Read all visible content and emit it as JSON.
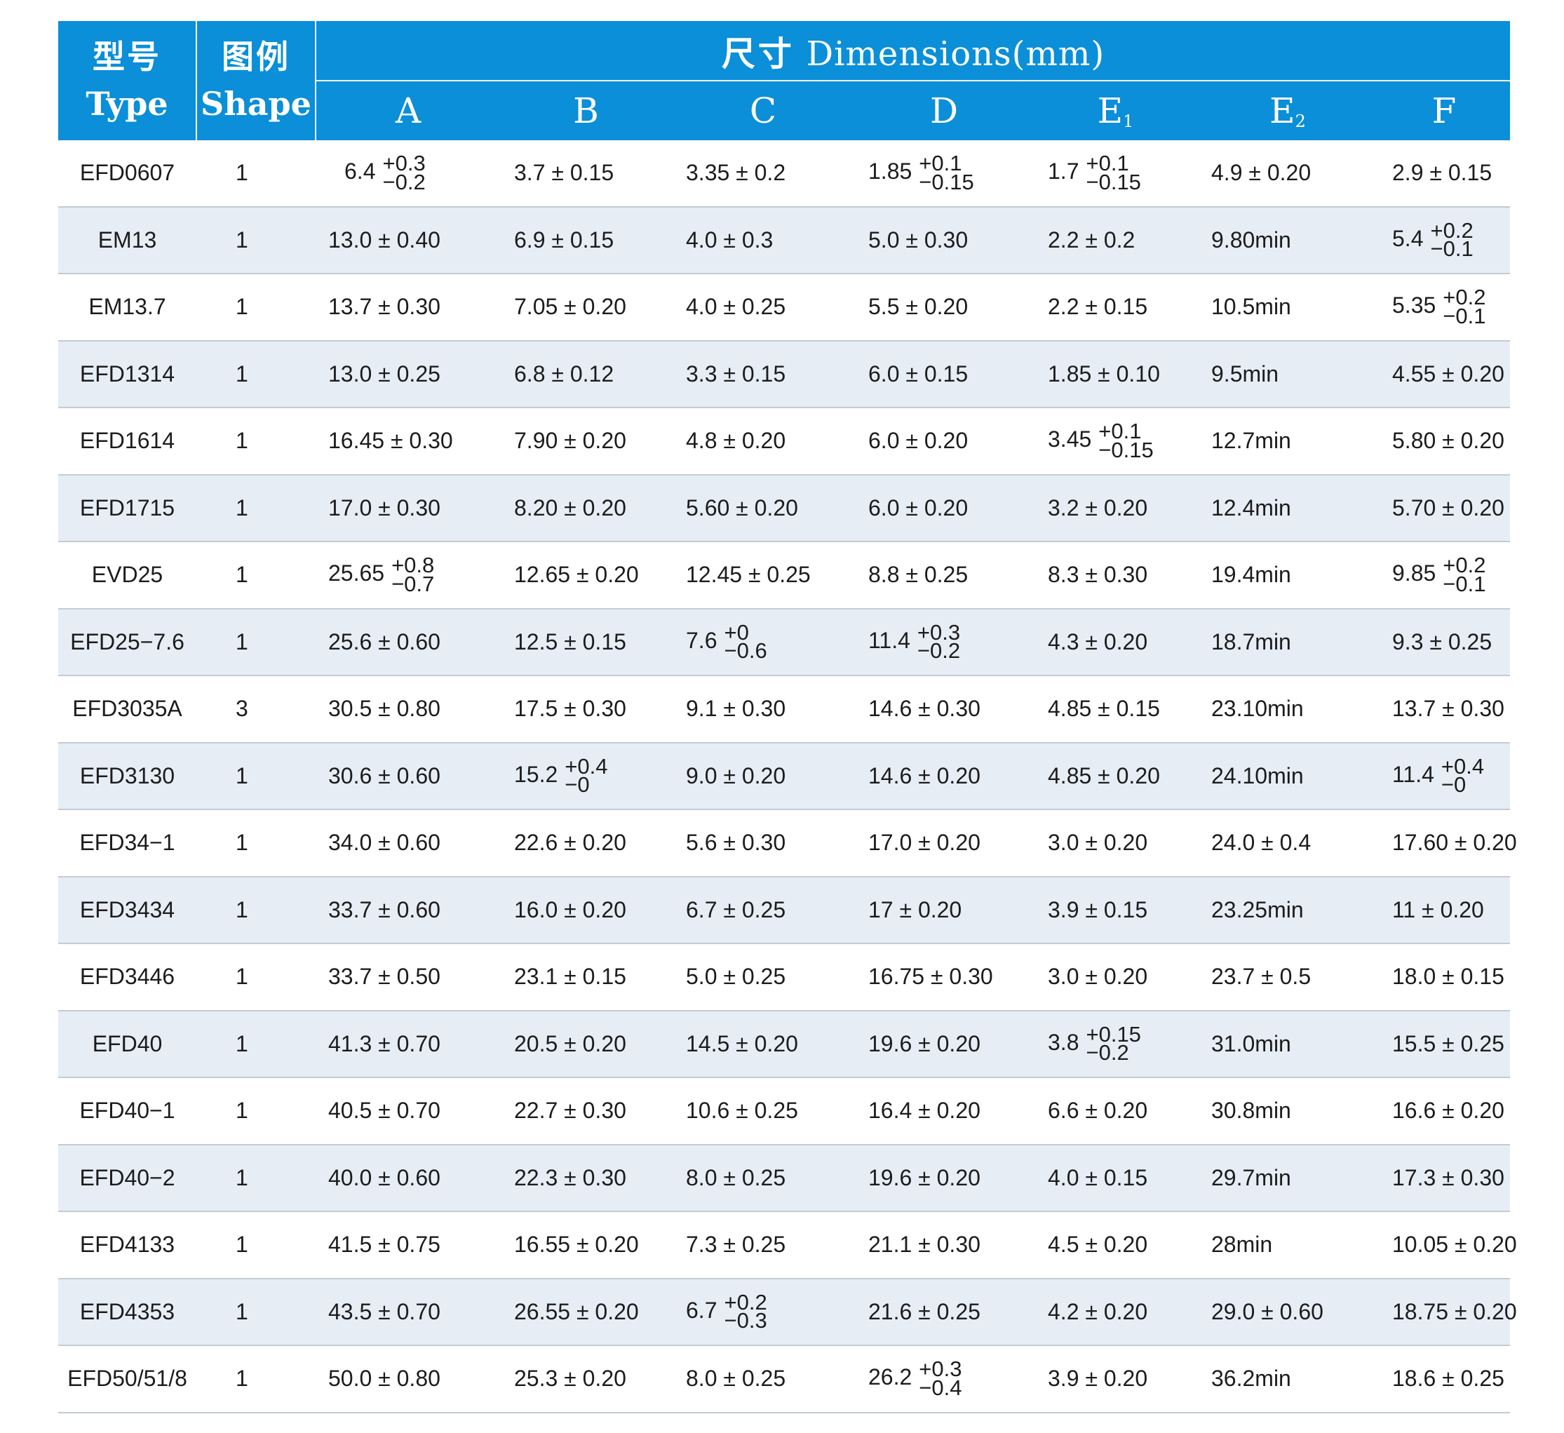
{
  "header": {
    "type_cn": "型号",
    "type_en": "Type",
    "shape_cn": "图例",
    "shape_en": "Shape",
    "dims_cn": "尺寸",
    "dims_en": "Dimensions(mm)",
    "columns": [
      {
        "label": "A",
        "sub": ""
      },
      {
        "label": "B",
        "sub": ""
      },
      {
        "label": "C",
        "sub": ""
      },
      {
        "label": "D",
        "sub": ""
      },
      {
        "label": "E",
        "sub": "1"
      },
      {
        "label": "E",
        "sub": "2"
      },
      {
        "label": "F",
        "sub": ""
      }
    ]
  },
  "rows": [
    {
      "type": "EFD0607",
      "shape": "1",
      "values": [
        {
          "base": "6.4",
          "up": "+0.3",
          "dn": "−0.2"
        },
        {
          "text": "3.7 ± 0.15"
        },
        {
          "text": "3.35 ± 0.2"
        },
        {
          "base": "1.85",
          "up": "+0.1",
          "dn": "−0.15"
        },
        {
          "base": "1.7",
          "up": "+0.1",
          "dn": "−0.15"
        },
        {
          "text": "4.9 ± 0.20"
        },
        {
          "text": "2.9 ± 0.15"
        }
      ]
    },
    {
      "type": "EM13",
      "shape": "1",
      "values": [
        {
          "text": "13.0 ± 0.40"
        },
        {
          "text": "6.9 ± 0.15"
        },
        {
          "text": "4.0 ± 0.3"
        },
        {
          "text": "5.0 ± 0.30"
        },
        {
          "text": "2.2 ± 0.2"
        },
        {
          "text": "9.80min"
        },
        {
          "base": "5.4",
          "up": "+0.2",
          "dn": "−0.1"
        }
      ]
    },
    {
      "type": "EM13.7",
      "shape": "1",
      "values": [
        {
          "text": "13.7 ± 0.30"
        },
        {
          "text": "7.05 ± 0.20"
        },
        {
          "text": "4.0 ± 0.25"
        },
        {
          "text": "5.5 ± 0.20"
        },
        {
          "text": "2.2 ± 0.15"
        },
        {
          "text": "10.5min"
        },
        {
          "base": "5.35",
          "up": "+0.2",
          "dn": "−0.1"
        }
      ]
    },
    {
      "type": "EFD1314",
      "shape": "1",
      "values": [
        {
          "text": "13.0 ± 0.25"
        },
        {
          "text": "6.8 ± 0.12"
        },
        {
          "text": "3.3 ± 0.15"
        },
        {
          "text": "6.0 ± 0.15"
        },
        {
          "text": "1.85 ± 0.10"
        },
        {
          "text": "9.5min"
        },
        {
          "text": "4.55 ± 0.20"
        }
      ]
    },
    {
      "type": "EFD1614",
      "shape": "1",
      "values": [
        {
          "text": "16.45 ± 0.30"
        },
        {
          "text": "7.90 ± 0.20"
        },
        {
          "text": "4.8 ± 0.20"
        },
        {
          "text": "6.0 ± 0.20"
        },
        {
          "base": "3.45",
          "up": "+0.1",
          "dn": "−0.15"
        },
        {
          "text": "12.7min"
        },
        {
          "text": "5.80 ± 0.20"
        }
      ]
    },
    {
      "type": "EFD1715",
      "shape": "1",
      "values": [
        {
          "text": "17.0 ± 0.30"
        },
        {
          "text": "8.20 ± 0.20"
        },
        {
          "text": "5.60 ± 0.20"
        },
        {
          "text": "6.0 ± 0.20"
        },
        {
          "text": "3.2 ± 0.20"
        },
        {
          "text": "12.4min"
        },
        {
          "text": "5.70 ± 0.20"
        }
      ]
    },
    {
      "type": "EVD25",
      "shape": "1",
      "values": [
        {
          "base": "25.65",
          "up": "+0.8",
          "dn": "−0.7"
        },
        {
          "text": "12.65 ± 0.20"
        },
        {
          "text": "12.45 ± 0.25"
        },
        {
          "text": "8.8 ± 0.25"
        },
        {
          "text": "8.3 ± 0.30"
        },
        {
          "text": "19.4min"
        },
        {
          "base": "9.85",
          "up": "+0.2",
          "dn": "−0.1"
        }
      ]
    },
    {
      "type": "EFD25−7.6",
      "shape": "1",
      "values": [
        {
          "text": "25.6 ± 0.60"
        },
        {
          "text": "12.5 ± 0.15"
        },
        {
          "base": "7.6",
          "up": "+0",
          "dn": "−0.6"
        },
        {
          "base": "11.4",
          "up": "+0.3",
          "dn": "−0.2"
        },
        {
          "text": "4.3 ± 0.20"
        },
        {
          "text": "18.7min"
        },
        {
          "text": "9.3 ± 0.25"
        }
      ]
    },
    {
      "type": "EFD3035A",
      "shape": "3",
      "values": [
        {
          "text": "30.5 ± 0.80"
        },
        {
          "text": "17.5 ± 0.30"
        },
        {
          "text": "9.1 ± 0.30"
        },
        {
          "text": "14.6 ± 0.30"
        },
        {
          "text": "4.85 ± 0.15"
        },
        {
          "text": "23.10min"
        },
        {
          "text": "13.7 ± 0.30"
        }
      ]
    },
    {
      "type": "EFD3130",
      "shape": "1",
      "values": [
        {
          "text": "30.6 ± 0.60"
        },
        {
          "base": "15.2",
          "up": "+0.4",
          "dn": "−0"
        },
        {
          "text": "9.0 ± 0.20"
        },
        {
          "text": "14.6 ± 0.20"
        },
        {
          "text": "4.85 ± 0.20"
        },
        {
          "text": "24.10min"
        },
        {
          "base": "11.4",
          "up": "+0.4",
          "dn": "−0"
        }
      ]
    },
    {
      "type": "EFD34−1",
      "shape": "1",
      "values": [
        {
          "text": "34.0 ± 0.60"
        },
        {
          "text": "22.6 ± 0.20"
        },
        {
          "text": "5.6 ± 0.30"
        },
        {
          "text": "17.0 ± 0.20"
        },
        {
          "text": "3.0 ± 0.20"
        },
        {
          "text": "24.0 ± 0.4"
        },
        {
          "text": "17.60 ± 0.20"
        }
      ]
    },
    {
      "type": "EFD3434",
      "shape": "1",
      "values": [
        {
          "text": "33.7 ± 0.60"
        },
        {
          "text": "16.0 ± 0.20"
        },
        {
          "text": "6.7 ± 0.25"
        },
        {
          "text": "17 ± 0.20"
        },
        {
          "text": "3.9 ± 0.15"
        },
        {
          "text": "23.25min"
        },
        {
          "text": "11 ± 0.20"
        }
      ]
    },
    {
      "type": "EFD3446",
      "shape": "1",
      "values": [
        {
          "text": "33.7 ± 0.50"
        },
        {
          "text": "23.1 ± 0.15"
        },
        {
          "text": "5.0 ± 0.25"
        },
        {
          "text": "16.75 ± 0.30"
        },
        {
          "text": "3.0 ± 0.20"
        },
        {
          "text": "23.7 ± 0.5"
        },
        {
          "text": "18.0 ± 0.15"
        }
      ]
    },
    {
      "type": "EFD40",
      "shape": "1",
      "values": [
        {
          "text": "41.3 ± 0.70"
        },
        {
          "text": "20.5 ± 0.20"
        },
        {
          "text": "14.5 ± 0.20"
        },
        {
          "text": "19.6 ± 0.20"
        },
        {
          "base": "3.8",
          "up": "+0.15",
          "dn": "−0.2"
        },
        {
          "text": "31.0min"
        },
        {
          "text": "15.5 ± 0.25"
        }
      ]
    },
    {
      "type": "EFD40−1",
      "shape": "1",
      "values": [
        {
          "text": "40.5 ± 0.70"
        },
        {
          "text": "22.7 ± 0.30"
        },
        {
          "text": "10.6 ± 0.25"
        },
        {
          "text": "16.4 ± 0.20"
        },
        {
          "text": "6.6 ± 0.20"
        },
        {
          "text": "30.8min"
        },
        {
          "text": "16.6 ± 0.20"
        }
      ]
    },
    {
      "type": "EFD40−2",
      "shape": "1",
      "values": [
        {
          "text": "40.0 ± 0.60"
        },
        {
          "text": "22.3 ± 0.30"
        },
        {
          "text": "8.0 ± 0.25"
        },
        {
          "text": "19.6 ± 0.20"
        },
        {
          "text": "4.0 ± 0.15"
        },
        {
          "text": "29.7min"
        },
        {
          "text": "17.3 ± 0.30"
        }
      ]
    },
    {
      "type": "EFD4133",
      "shape": "1",
      "values": [
        {
          "text": "41.5 ± 0.75"
        },
        {
          "text": "16.55 ± 0.20"
        },
        {
          "text": "7.3 ± 0.25"
        },
        {
          "text": "21.1 ± 0.30"
        },
        {
          "text": "4.5 ± 0.20"
        },
        {
          "text": "28min"
        },
        {
          "text": "10.05 ± 0.20"
        }
      ]
    },
    {
      "type": "EFD4353",
      "shape": "1",
      "values": [
        {
          "text": "43.5 ± 0.70"
        },
        {
          "text": "26.55 ± 0.20"
        },
        {
          "base": "6.7",
          "up": "+0.2",
          "dn": "−0.3"
        },
        {
          "text": "21.6 ± 0.25"
        },
        {
          "text": "4.2 ± 0.20"
        },
        {
          "text": "29.0 ± 0.60"
        },
        {
          "text": "18.75 ± 0.20"
        }
      ]
    },
    {
      "type": "EFD50/51/8",
      "shape": "1",
      "values": [
        {
          "text": "50.0 ± 0.80"
        },
        {
          "text": "25.3 ± 0.20"
        },
        {
          "text": "8.0 ± 0.25"
        },
        {
          "base": "26.2",
          "up": "+0.3",
          "dn": "−0.4"
        },
        {
          "text": "3.9 ± 0.20"
        },
        {
          "text": "36.2min"
        },
        {
          "text": "18.6 ± 0.25"
        }
      ]
    }
  ],
  "colors": {
    "header_bg": "#0a8fd8",
    "header_text": "#ffffff",
    "row_alt_bg": "#e6edf5",
    "row_border": "#c3cbd3"
  }
}
